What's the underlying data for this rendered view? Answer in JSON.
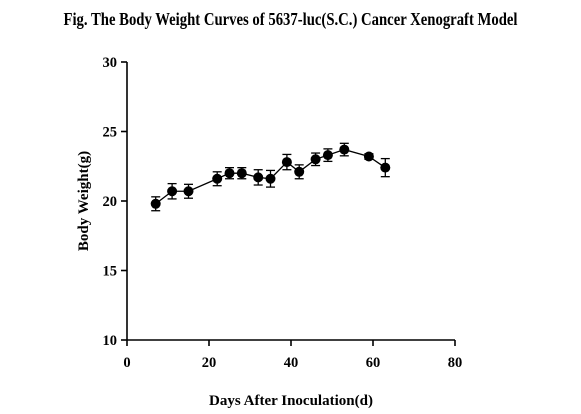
{
  "chart_data": {
    "type": "line",
    "title": "Fig. The Body Weight  Curves of 5637-luc(S.C.) Cancer Xenograft Model",
    "xlabel": "Days After Inoculation(d)",
    "ylabel": "Body Weight(g)",
    "xlim": [
      0,
      80
    ],
    "ylim": [
      10,
      30
    ],
    "x_ticks": [
      0,
      20,
      40,
      60,
      80
    ],
    "y_ticks": [
      10,
      15,
      20,
      25,
      30
    ],
    "grid": false,
    "marker": "filled-circle",
    "error_bars": true,
    "color": "#000000",
    "series": [
      {
        "x": [
          7,
          11,
          15,
          22,
          25,
          28,
          32,
          35,
          39,
          42,
          46,
          49,
          53,
          59,
          63
        ],
        "y": [
          19.8,
          20.7,
          20.7,
          21.6,
          22.0,
          22.0,
          21.7,
          21.6,
          22.8,
          22.1,
          23.0,
          23.3,
          23.7,
          23.2,
          22.4
        ],
        "error": [
          0.5,
          0.55,
          0.5,
          0.5,
          0.4,
          0.4,
          0.55,
          0.6,
          0.55,
          0.5,
          0.45,
          0.45,
          0.45,
          0.2,
          0.65
        ]
      }
    ]
  }
}
